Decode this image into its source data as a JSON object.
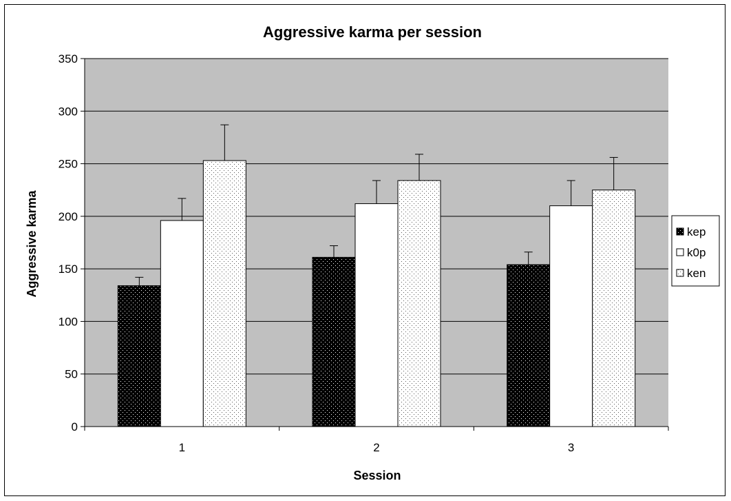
{
  "chart_data": {
    "type": "bar",
    "title": "Aggressive karma per session",
    "xlabel": "Session",
    "ylabel": "Aggressive karma",
    "categories": [
      "1",
      "2",
      "3"
    ],
    "ylim": [
      0,
      350
    ],
    "yticks": [
      0,
      50,
      100,
      150,
      200,
      250,
      300,
      350
    ],
    "grid": true,
    "legend_position": "right",
    "series": [
      {
        "name": "kep",
        "values": [
          134,
          161,
          154
        ],
        "errors": [
          8,
          11,
          12
        ],
        "color": "#000000",
        "pattern": "dots-on-black"
      },
      {
        "name": "k0p",
        "values": [
          196,
          212,
          210
        ],
        "errors": [
          21,
          22,
          24
        ],
        "color": "#ffffff",
        "pattern": "solid-white"
      },
      {
        "name": "ken",
        "values": [
          253,
          234,
          225
        ],
        "errors": [
          34,
          25,
          31
        ],
        "color": "#ffffff",
        "pattern": "dots-on-white"
      }
    ],
    "plot_background": "#c0c0c0"
  }
}
